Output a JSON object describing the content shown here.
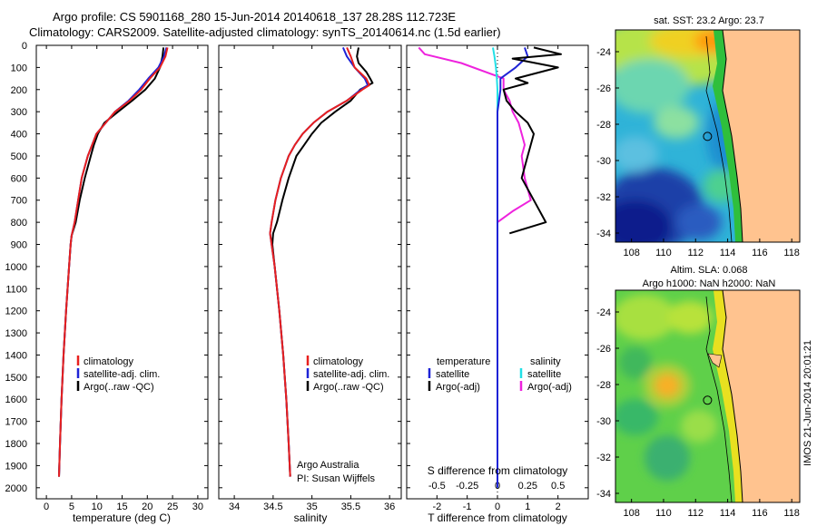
{
  "header": {
    "line1": "Argo profile: CS 5901168_280 15-Jun-2014 20140618_137 28.28S 112.723E",
    "line2": "Climatology: CARS2009. Satellite-adjusted climatology: synTS_20140614.nc (1.5d earlier)"
  },
  "credit": "IMOS 21-Jun-2014 20:01:21",
  "depth_ticks": [
    "0",
    "100",
    "200",
    "300",
    "400",
    "500",
    "600",
    "700",
    "800",
    "900",
    "1000",
    "1100",
    "1200",
    "1300",
    "1400",
    "1500",
    "1600",
    "1700",
    "1800",
    "1900",
    "2000"
  ],
  "colors": {
    "climatology": "#e8201e",
    "satellite": "#1e23d6",
    "argo": "#000000",
    "sat_salinity": "#22e0e6",
    "argo_salinity_adj": "#ee22dd"
  },
  "chart_data": [
    {
      "type": "line",
      "id": "temperature",
      "xlabel": "temperature (deg C)",
      "xticks": [
        "0",
        "5",
        "10",
        "15",
        "20",
        "25",
        "30"
      ],
      "xlim": [
        -2,
        32
      ],
      "ylim": [
        0,
        2050
      ],
      "legend": [
        "climatology",
        "satellite-adj. clim.",
        "Argo(..raw -QC)"
      ],
      "series": [
        {
          "name": "climatology",
          "depth": [
            10,
            50,
            100,
            150,
            200,
            250,
            300,
            400,
            500,
            600,
            700,
            800,
            860,
            900,
            1000,
            1200,
            1400,
            1600,
            1800,
            1950
          ],
          "values": [
            24,
            23.6,
            22.5,
            20.5,
            18.8,
            16.5,
            13.6,
            9.9,
            8.2,
            7.0,
            6.3,
            5.6,
            5.0,
            4.8,
            4.5,
            3.9,
            3.4,
            3.0,
            2.7,
            2.5
          ]
        },
        {
          "name": "satellite-adj. clim.",
          "depth": [
            10,
            50,
            100,
            150,
            200,
            250,
            300,
            400,
            500,
            600,
            700,
            800,
            860,
            900,
            1000,
            1200,
            1400,
            1600,
            1800,
            1950
          ],
          "values": [
            23.8,
            23.3,
            22.2,
            20.2,
            18.4,
            16.3,
            13.6,
            9.9,
            8.2,
            7.0,
            6.3,
            5.6,
            5.0,
            4.8,
            4.5,
            3.9,
            3.4,
            3.0,
            2.7,
            2.5
          ]
        },
        {
          "name": "Argo(..raw -QC)",
          "depth": [
            10,
            50,
            100,
            150,
            200,
            250,
            300,
            350,
            400,
            450,
            500,
            600,
            700,
            800,
            860,
            900,
            1000,
            1200,
            1400,
            1600,
            1800,
            1950
          ],
          "values": [
            23.2,
            23.0,
            22.5,
            21.5,
            19.6,
            17.0,
            14.2,
            11.5,
            10.2,
            9.4,
            8.8,
            7.6,
            6.6,
            5.8,
            5.0,
            4.8,
            4.5,
            3.9,
            3.4,
            3.0,
            2.7,
            2.5
          ]
        }
      ]
    },
    {
      "type": "line",
      "id": "salinity",
      "xlabel": "salinity",
      "xticks": [
        "34",
        "34.5",
        "35",
        "35.5",
        "36"
      ],
      "xlim": [
        33.8,
        36.15
      ],
      "ylim": [
        0,
        2050
      ],
      "legend": [
        "climatology",
        "satellite-adj. clim.",
        "Argo(..raw -QC)"
      ],
      "annotation": [
        "Argo Australia",
        "PI: Susan Wijffels"
      ],
      "series": [
        {
          "name": "climatology",
          "depth": [
            10,
            50,
            100,
            150,
            180,
            200,
            250,
            300,
            350,
            400,
            450,
            500,
            600,
            700,
            800,
            850,
            900,
            1000,
            1200,
            1400,
            1600,
            1800,
            1950
          ],
          "values": [
            35.45,
            35.5,
            35.55,
            35.7,
            35.74,
            35.65,
            35.45,
            35.2,
            35.02,
            34.88,
            34.78,
            34.7,
            34.6,
            34.53,
            34.48,
            34.46,
            34.48,
            34.52,
            34.58,
            34.63,
            34.67,
            34.7,
            34.72
          ]
        },
        {
          "name": "satellite-adj. clim.",
          "depth": [
            10,
            50,
            100,
            150,
            180,
            200,
            250,
            300,
            350,
            400,
            450,
            500,
            600,
            700,
            800,
            850,
            900,
            1000,
            1200,
            1400,
            1600,
            1800,
            1950
          ],
          "values": [
            35.4,
            35.45,
            35.55,
            35.68,
            35.72,
            35.63,
            35.45,
            35.2,
            35.02,
            34.88,
            34.78,
            34.7,
            34.6,
            34.53,
            34.48,
            34.46,
            34.48,
            34.52,
            34.58,
            34.63,
            34.67,
            34.7,
            34.72
          ]
        },
        {
          "name": "Argo(..raw -QC)",
          "depth": [
            10,
            50,
            80,
            120,
            150,
            170,
            200,
            250,
            300,
            350,
            400,
            450,
            500,
            600,
            700,
            800,
            850,
            900,
            1000,
            1200,
            1400,
            1600,
            1800,
            1950
          ],
          "values": [
            35.6,
            35.58,
            35.6,
            35.7,
            35.75,
            35.78,
            35.62,
            35.5,
            35.3,
            35.12,
            35.0,
            34.9,
            34.8,
            34.7,
            34.62,
            34.55,
            34.5,
            34.49,
            34.52,
            34.58,
            34.63,
            34.67,
            34.7,
            34.72
          ]
        }
      ]
    },
    {
      "type": "line",
      "id": "differences",
      "xlabel": "T difference from climatology",
      "xlabel_top": "S difference from climatology",
      "xticks": [
        "-2",
        "-1",
        "0",
        "1",
        "2"
      ],
      "xticks_top": [
        "-0.5",
        "-0.25",
        "0",
        "0.25",
        "0.5"
      ],
      "xlim": [
        -3,
        3
      ],
      "ylim": [
        0,
        2050
      ],
      "legend_left_title": "temperature",
      "legend_left": [
        "satellite",
        "Argo(-adj)"
      ],
      "legend_right_title": "salinity",
      "legend_right": [
        "satellite",
        "Argo(-adj)"
      ],
      "series": [
        {
          "name": "satellite (temperature)",
          "depth": [
            10,
            50,
            100,
            150,
            200,
            250,
            300,
            400,
            500,
            600,
            800,
            1000,
            1500,
            2000
          ],
          "values": [
            0.9,
            1.0,
            0.6,
            0.1,
            0.1,
            0.05,
            0,
            0,
            0,
            0,
            0,
            0,
            0,
            0
          ]
        },
        {
          "name": "Argo(-adj) (temperature)",
          "depth": [
            10,
            40,
            60,
            100,
            150,
            170,
            200,
            250,
            300,
            350,
            400,
            500,
            600,
            700,
            800,
            850
          ],
          "values": [
            1.2,
            2.1,
            0.5,
            2.0,
            0.6,
            1.0,
            0.2,
            0.3,
            0.6,
            1.0,
            1.2,
            1.0,
            0.8,
            1.2,
            1.6,
            0.4
          ]
        },
        {
          "name": "satellite (salinity)",
          "depth": [
            10,
            50,
            100,
            150,
            200,
            300,
            400,
            500,
            600,
            700,
            800,
            1000,
            1500,
            2000
          ],
          "values": [
            -0.15,
            -0.1,
            -0.05,
            -0.02,
            0,
            0,
            0,
            0,
            0,
            0,
            0,
            0,
            0,
            0
          ]
        },
        {
          "name": "Argo(-adj) (salinity)",
          "depth": [
            10,
            40,
            80,
            150,
            200,
            250,
            300,
            350,
            400,
            450,
            500,
            600,
            700,
            750,
            800
          ],
          "values": [
            -2.6,
            -2.4,
            -1.2,
            0.2,
            0.2,
            0.4,
            0.5,
            0.7,
            0.8,
            0.9,
            0.8,
            0.9,
            1.1,
            0.5,
            0.0
          ]
        }
      ]
    },
    {
      "type": "heatmap",
      "id": "sst_map",
      "title": "sat. SST: 23.2 Argo: 23.7",
      "yticks": [
        "-24",
        "-26",
        "-28",
        "-30",
        "-32",
        "-34"
      ],
      "xticks": [
        "108",
        "110",
        "112",
        "114",
        "116",
        "118"
      ],
      "xlim": [
        107,
        118.5
      ],
      "ylim": [
        -34.5,
        -22.8
      ],
      "argo_lon": 112.723,
      "argo_lat": -28.28
    },
    {
      "type": "heatmap",
      "id": "sla_map",
      "title": "Altim. SLA: 0.068",
      "subtitle": "Argo h1000: NaN h2000: NaN",
      "yticks": [
        "-24",
        "-26",
        "-28",
        "-30",
        "-32",
        "-34"
      ],
      "xticks": [
        "108",
        "110",
        "112",
        "114",
        "116",
        "118"
      ],
      "xlim": [
        107,
        118.5
      ],
      "ylim": [
        -34.5,
        -22.8
      ],
      "argo_lon": 112.723,
      "argo_lat": -28.28
    }
  ]
}
